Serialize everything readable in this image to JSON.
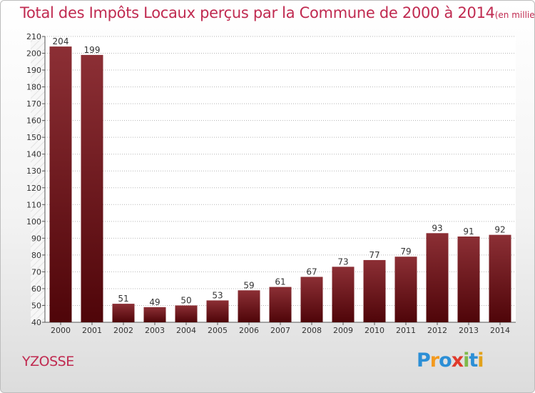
{
  "title": "Total des Impôts Locaux perçus par la Commune de 2000 à 2014",
  "unit": "(en milliers d'€)",
  "commune": "YZOSSE",
  "logo": {
    "letters": [
      "P",
      "r",
      "o",
      "x",
      "i",
      "t",
      "i"
    ],
    "colors": [
      "#2c8fd6",
      "#f39a1f",
      "#2c8fd6",
      "#e03a2c",
      "#7fb94a",
      "#2c8fd6",
      "#e2a21b"
    ]
  },
  "colors": {
    "title": "#c02a50",
    "bar_top": "#8c2f35",
    "bar_bottom": "#4f0509",
    "grid": "#b5b5b5"
  },
  "chart_data": {
    "type": "bar",
    "categories": [
      "2000",
      "2001",
      "2002",
      "2003",
      "2004",
      "2005",
      "2006",
      "2007",
      "2008",
      "2009",
      "2010",
      "2011",
      "2012",
      "2013",
      "2014"
    ],
    "values": [
      204,
      199,
      51,
      49,
      50,
      53,
      59,
      61,
      67,
      73,
      77,
      79,
      93,
      91,
      92
    ],
    "ylim": [
      40,
      210
    ],
    "yticks": [
      40,
      50,
      60,
      70,
      80,
      90,
      100,
      110,
      120,
      130,
      140,
      150,
      160,
      170,
      180,
      190,
      200,
      210
    ],
    "grid": true,
    "data_labels": true
  }
}
